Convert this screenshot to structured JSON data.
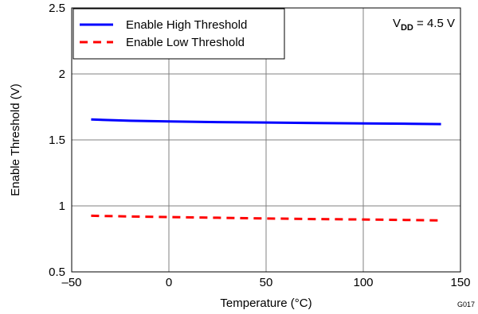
{
  "chart_data": {
    "type": "line",
    "title": "",
    "xlabel": "Temperature (°C)",
    "ylabel": "Enable Threshold (V)",
    "xlim": [
      -50,
      150
    ],
    "ylim": [
      0.5,
      2.5
    ],
    "xticks": [
      -50,
      0,
      50,
      100,
      150
    ],
    "xtick_labels": [
      "–50",
      "0",
      "50",
      "100",
      "150"
    ],
    "yticks": [
      0.5,
      1,
      1.5,
      2,
      2.5
    ],
    "ytick_labels": [
      "0.5",
      "1",
      "1.5",
      "2",
      "2.5"
    ],
    "grid": true,
    "legend_position": "top-left",
    "series": [
      {
        "name": "Enable High Threshold",
        "color": "#0000ff",
        "dash": "solid",
        "x": [
          -40,
          -20,
          0,
          25,
          50,
          75,
          100,
          125,
          140
        ],
        "y": [
          1.655,
          1.645,
          1.64,
          1.635,
          1.632,
          1.628,
          1.625,
          1.622,
          1.62
        ]
      },
      {
        "name": "Enable Low Threshold",
        "color": "#ff0000",
        "dash": "dashed",
        "x": [
          -40,
          -20,
          0,
          25,
          50,
          75,
          100,
          125,
          140
        ],
        "y": [
          0.925,
          0.92,
          0.915,
          0.91,
          0.905,
          0.9,
          0.897,
          0.893,
          0.89
        ]
      }
    ],
    "annotation": {
      "prefix": "V",
      "subscript": "DD",
      "suffix": " = 4.5 V"
    },
    "figure_code": "G017"
  }
}
